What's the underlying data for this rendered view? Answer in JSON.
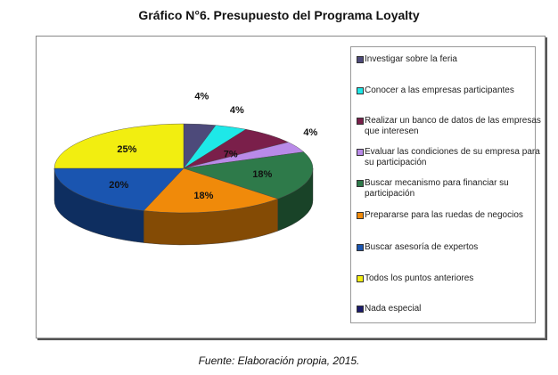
{
  "chart_data": {
    "type": "pie",
    "title": "Gráfico N°6. Presupuesto del Programa Loyalty",
    "source": "Fuente: Elaboración propia, 2015.",
    "legend_position": "right",
    "slices": [
      {
        "label": "Investigar sobre la feria",
        "value": 4,
        "data_label": "4%",
        "color": "#4d4a7a"
      },
      {
        "label": "Conocer a las empresas participantes",
        "value": 4,
        "data_label": "4%",
        "color": "#1ee8e8"
      },
      {
        "label": "Realizar un banco de datos de las empresas que interesen",
        "value": 7,
        "data_label": "7%",
        "color": "#7a1f4a"
      },
      {
        "label": "Evaluar las condiciones de su empresa para su participación",
        "value": 4,
        "data_label": "4%",
        "color": "#b98ae8"
      },
      {
        "label": "Buscar mecanismo para financiar su participación",
        "value": 18,
        "data_label": "18%",
        "color": "#2e7a4a"
      },
      {
        "label": "Prepararse para las ruedas de negocios",
        "value": 18,
        "data_label": "18%",
        "color": "#f08a0a"
      },
      {
        "label": "Buscar asesoría de expertos",
        "value": 20,
        "data_label": "20%",
        "color": "#1a55b0"
      },
      {
        "label": "Todos los puntos anteriores",
        "value": 25,
        "data_label": "25%",
        "color": "#f2ee10"
      },
      {
        "label": "Nada especial",
        "value": 0,
        "data_label": "",
        "color": "#1a1a6a"
      }
    ]
  }
}
